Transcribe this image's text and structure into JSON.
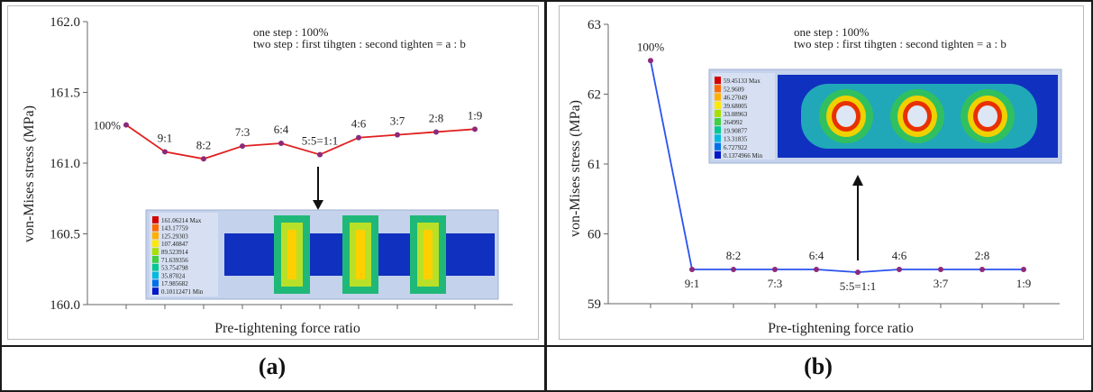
{
  "panels": [
    {
      "id": "a",
      "label": "(a)",
      "annotation": [
        "one step : 100%",
        "two step : first tihgten : second tighten = a : b"
      ],
      "inset": {
        "legend": [
          "161.06214 Max",
          "143.17759",
          "125.29303",
          "107.40847",
          "89.523914",
          "71.639356",
          "53.754798",
          "35.87024",
          "17.985682",
          "0.10112471 Min"
        ]
      }
    },
    {
      "id": "b",
      "label": "(b)",
      "annotation": [
        "one step : 100%",
        "two step : first tihgten : second tighten = a : b"
      ],
      "inset": {
        "legend": [
          "59.45133 Max",
          "52.9609",
          "46.27049",
          "39.68005",
          "33.08963",
          "264992",
          "19.90877",
          "13.31835",
          "6.727922",
          "0.1374966 Min"
        ]
      }
    }
  ],
  "colors": {
    "line": "#e02020",
    "line_b": "#2a52ee",
    "marker": "#8b2a7a",
    "axis": "#666666",
    "contour": [
      "#d40000",
      "#ff6a00",
      "#ffb000",
      "#ffe800",
      "#a8e000",
      "#40d040",
      "#00c890",
      "#00b8e0",
      "#0070e8",
      "#0018c8"
    ]
  },
  "chart_data": [
    {
      "type": "line",
      "xlabel": "Pre-tightening force ratio",
      "ylabel": "von-Mises stress (MPa)",
      "ylim": [
        160.0,
        162.0
      ],
      "yticks": [
        "160.0",
        "160.5",
        "161.0",
        "161.5",
        "162.0"
      ],
      "grid": false,
      "categories": [
        "100%",
        "9:1",
        "8:2",
        "7:3",
        "6:4",
        "5:5=1:1",
        "4:6",
        "3:7",
        "2:8",
        "1:9"
      ],
      "values": [
        161.27,
        161.08,
        161.03,
        161.12,
        161.14,
        161.06,
        161.18,
        161.2,
        161.22,
        161.24
      ],
      "label_positions": [
        "left",
        "above",
        "above",
        "above",
        "above",
        "above",
        "above",
        "above",
        "above",
        "above"
      ]
    },
    {
      "type": "line",
      "xlabel": "Pre-tightening force ratio",
      "ylabel": "von-Mises stress (MPa)",
      "ylim": [
        59,
        63
      ],
      "yticks": [
        "59",
        "60",
        "61",
        "62",
        "63"
      ],
      "grid": false,
      "categories": [
        "100%",
        "9:1",
        "8:2",
        "7:3",
        "6:4",
        "5:5=1:1",
        "4:6",
        "3:7",
        "2:8",
        "1:9"
      ],
      "values": [
        62.48,
        59.49,
        59.49,
        59.49,
        59.49,
        59.45,
        59.49,
        59.49,
        59.49,
        59.49
      ],
      "label_positions": [
        "above",
        "below",
        "above",
        "below",
        "above",
        "below",
        "above",
        "below",
        "above",
        "below"
      ]
    }
  ]
}
